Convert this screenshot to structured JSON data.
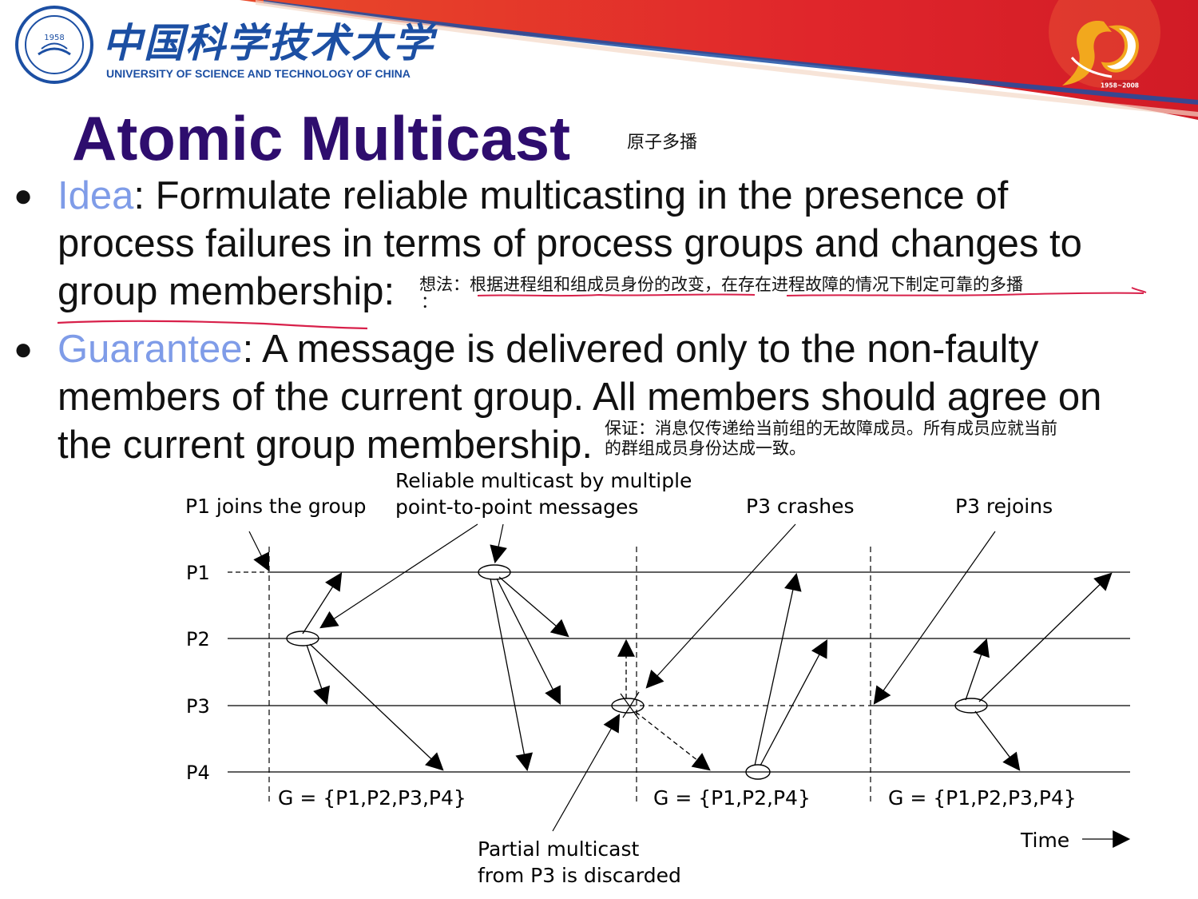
{
  "header": {
    "university_cn": "中国科学技术大学",
    "university_en": "UNIVERSITY OF SCIENCE AND TECHNOLOGY OF CHINA",
    "seal_year": "1958",
    "anniversary_years": "1958~2008",
    "colors": {
      "red": "#e0262b",
      "navy": "#1c4fa3",
      "title": "#2e0d6e",
      "keyword": "#7f9ce8",
      "annotation": "#d8204a"
    }
  },
  "slide": {
    "title": "Atomic Multicast",
    "title_cn": "原子多播",
    "bullets": [
      {
        "keyword": "Idea",
        "line1_rest": ": Formulate reliable multicasting in the presence of",
        "line2": "process failures in terms of process groups and changes to",
        "line3": "group membership:",
        "note_cn": "想法：根据进程组和组成员身份的改变，在存在进程故障的情况下制定可靠的多播",
        "note_cn_tail": "："
      },
      {
        "keyword": "Guarantee",
        "line1_rest": ": A message is delivered only to the non-faulty",
        "line2": "members of the current group. All members should agree on",
        "line3": "the current group membership.",
        "note_cn_line1": "保证：消息仅传递给当前组的无故障成员。所有成员应就当前",
        "note_cn_line2": "的群组成员身份达成一致。"
      }
    ]
  },
  "diagram": {
    "processes": [
      "P1",
      "P2",
      "P3",
      "P4"
    ],
    "captions": {
      "p1_joins": "P1 joins the group",
      "reliable_line1": "Reliable multicast by multiple",
      "reliable_line2": "point-to-point messages",
      "p3_crashes": "P3 crashes",
      "p3_rejoins": "P3 rejoins",
      "partial_line1": "Partial multicast",
      "partial_line2": "from P3 is discarded",
      "time": "Time"
    },
    "group_views": [
      "G = {P1,P2,P3,P4}",
      "G = {P1,P2,P4}",
      "G = {P1,P2,P3,P4}"
    ]
  }
}
